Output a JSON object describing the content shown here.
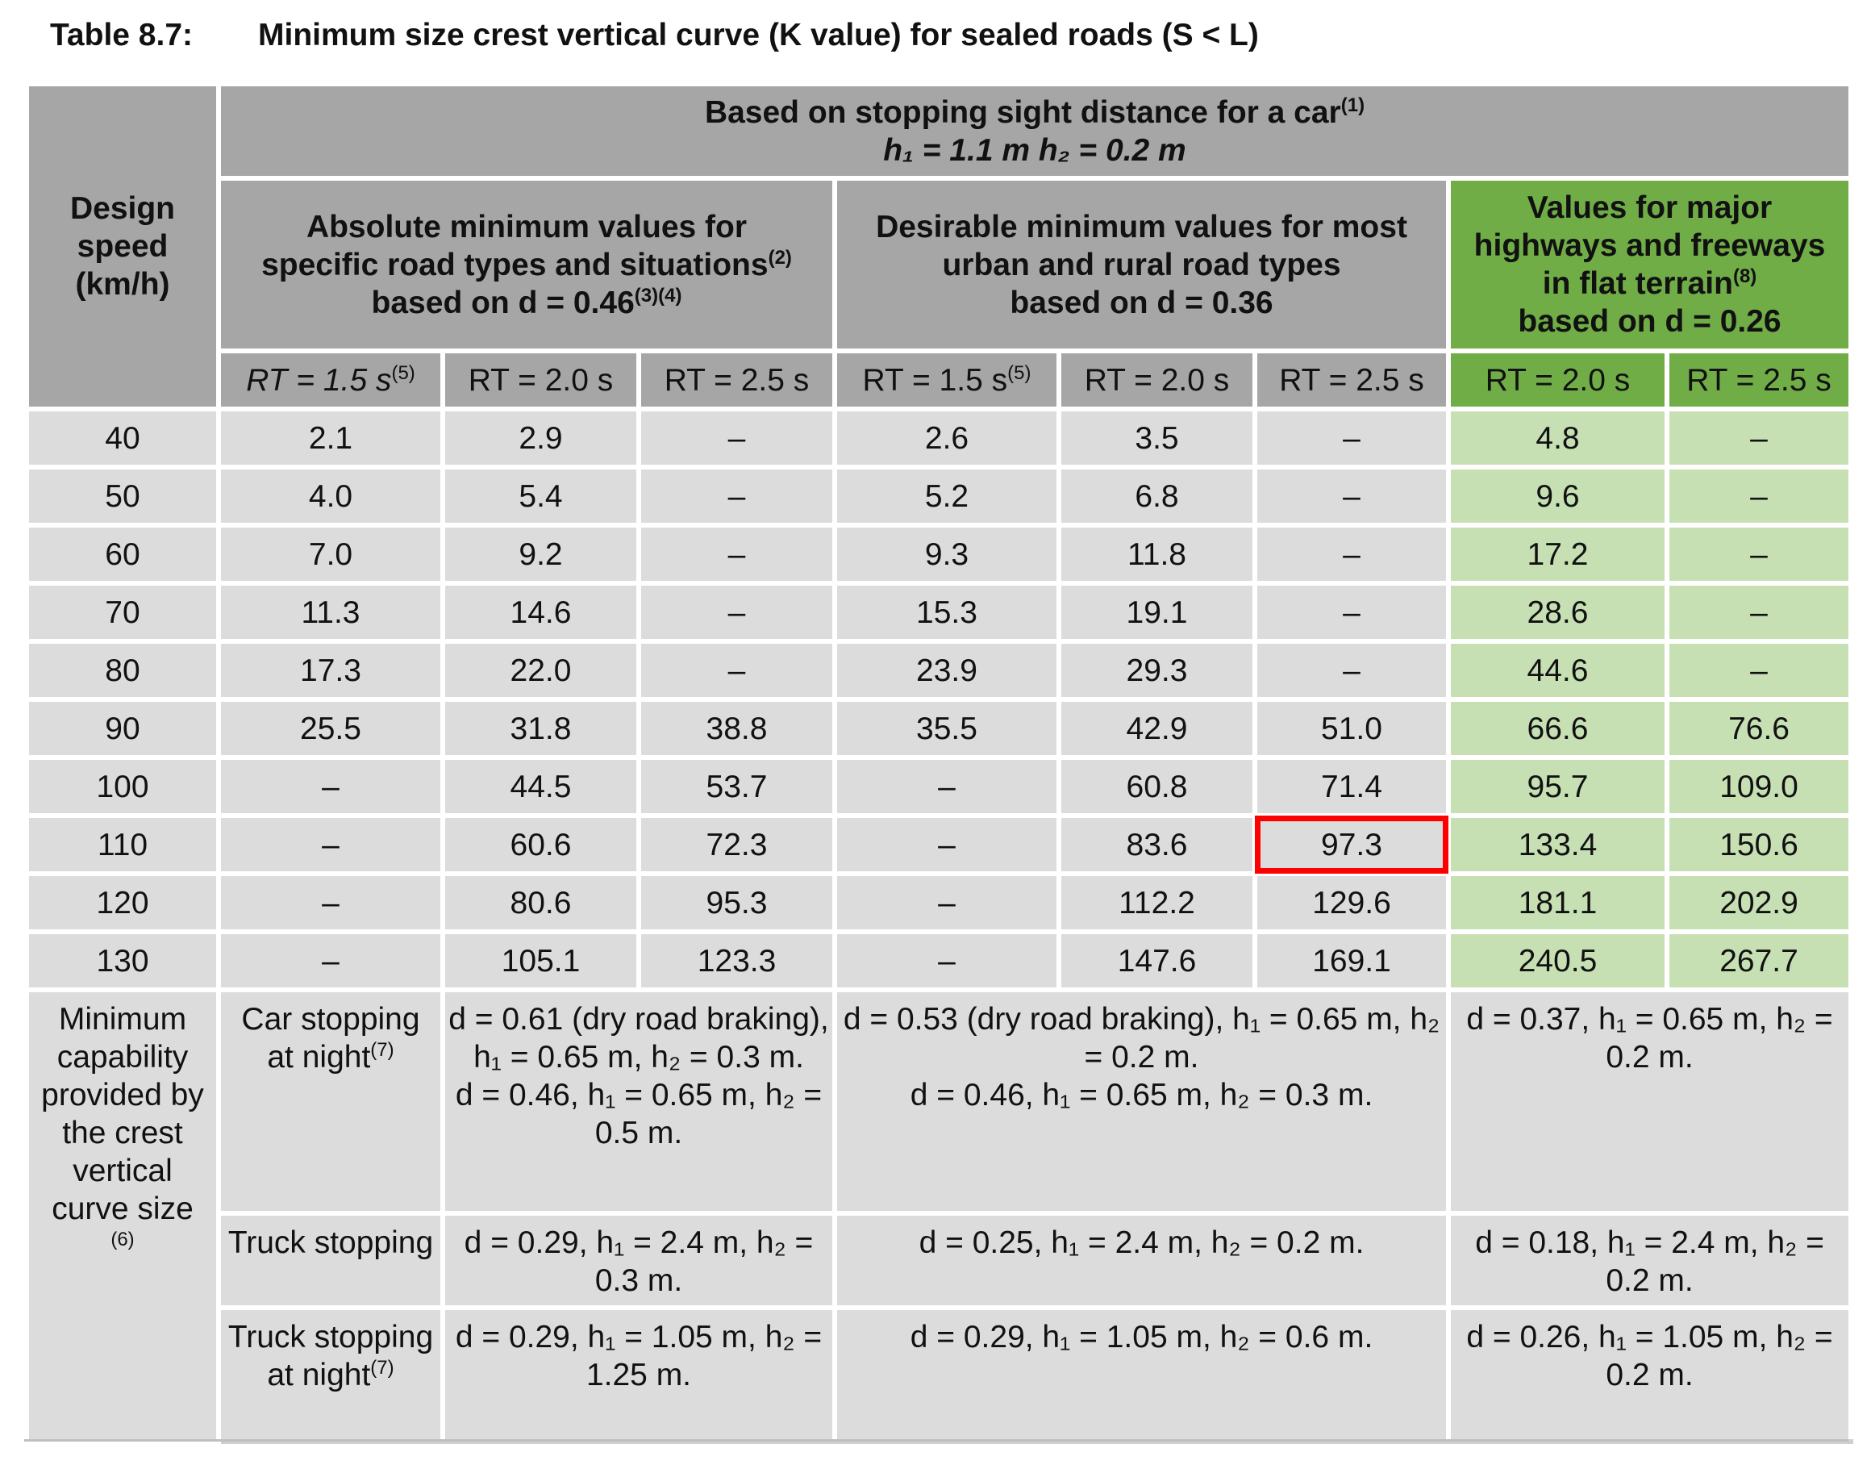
{
  "caption": {
    "number": "Table 8.7:",
    "title": "Minimum size crest vertical curve (K value) for sealed roads (S < L)"
  },
  "header": {
    "design_speed": "Design speed (km/h)",
    "top_group_line1": "Based on stopping sight distance for a car",
    "top_group_sup": "(1)",
    "top_group_line2": "h₁ = 1.1 m h₂ = 0.2 m",
    "group_absolute": {
      "line1": "Absolute minimum values for",
      "line2": "specific road types and situations",
      "sup2": "(2)",
      "line3": "based on d = 0.46",
      "sup3": "(3)(4)"
    },
    "group_desirable": {
      "line1": "Desirable minimum values for most",
      "line2": "urban and rural road types",
      "line3": "based on d = 0.36"
    },
    "group_major": {
      "line1": "Values for major",
      "line2": "highways and freeways",
      "line3": "in flat terrain",
      "sup3": "(8)",
      "line4": "based on d = 0.26"
    },
    "rt_labels": [
      "RT = 1.5 s",
      "RT = 2.0 s",
      "RT = 2.5 s",
      "RT = 1.5 s",
      "RT = 2.0 s",
      "RT = 2.5 s",
      "RT = 2.0 s",
      "RT = 2.5 s"
    ],
    "rt_sup": "(5)"
  },
  "rows": [
    {
      "speed": "40",
      "values": [
        "2.1",
        "2.9",
        "–",
        "2.6",
        "3.5",
        "–",
        "4.8",
        "–"
      ]
    },
    {
      "speed": "50",
      "values": [
        "4.0",
        "5.4",
        "–",
        "5.2",
        "6.8",
        "–",
        "9.6",
        "–"
      ]
    },
    {
      "speed": "60",
      "values": [
        "7.0",
        "9.2",
        "–",
        "9.3",
        "11.8",
        "–",
        "17.2",
        "–"
      ]
    },
    {
      "speed": "70",
      "values": [
        "11.3",
        "14.6",
        "–",
        "15.3",
        "19.1",
        "–",
        "28.6",
        "–"
      ]
    },
    {
      "speed": "80",
      "values": [
        "17.3",
        "22.0",
        "–",
        "23.9",
        "29.3",
        "–",
        "44.6",
        "–"
      ]
    },
    {
      "speed": "90",
      "values": [
        "25.5",
        "31.8",
        "38.8",
        "35.5",
        "42.9",
        "51.0",
        "66.6",
        "76.6"
      ]
    },
    {
      "speed": "100",
      "values": [
        "–",
        "44.5",
        "53.7",
        "–",
        "60.8",
        "71.4",
        "95.7",
        "109.0"
      ]
    },
    {
      "speed": "110",
      "values": [
        "–",
        "60.6",
        "72.3",
        "–",
        "83.6",
        "97.3",
        "133.4",
        "150.6"
      ]
    },
    {
      "speed": "120",
      "values": [
        "–",
        "80.6",
        "95.3",
        "–",
        "112.2",
        "129.6",
        "181.1",
        "202.9"
      ]
    },
    {
      "speed": "130",
      "values": [
        "–",
        "105.1",
        "123.3",
        "–",
        "147.6",
        "169.1",
        "240.5",
        "267.7"
      ]
    }
  ],
  "highlighted_cell": {
    "speed": "110",
    "column": "Desirable RT = 2.5 s",
    "value": "97.3"
  },
  "footer": {
    "label": "Minimum capability provided by the crest vertical curve size",
    "label_sup": "(6)",
    "rows": [
      {
        "name": "Car stopping at night",
        "name_sup": "(7)",
        "absolute": [
          "d = 0.61 (dry road braking),",
          "h₁ = 0.65 m, h₂ = 0.3 m.",
          "d = 0.46, h₁ = 0.65 m, h₂ = 0.5 m."
        ],
        "desirable": [
          "d = 0.53 (dry road braking), h₁ = 0.65 m, h₂ = 0.2 m.",
          "d = 0.46, h₁ = 0.65 m, h₂ = 0.3 m."
        ],
        "major": [
          "d = 0.37, h₁ = 0.65 m, h₂ = 0.2 m."
        ]
      },
      {
        "name": "Truck stopping",
        "name_sup": "",
        "absolute": [
          "d = 0.29, h₁ = 2.4 m, h₂ = 0.3 m."
        ],
        "desirable": [
          "d = 0.25, h₁ = 2.4 m, h₂ = 0.2 m."
        ],
        "major": [
          "d = 0.18, h₁ = 2.4 m, h₂ = 0.2 m."
        ]
      },
      {
        "name": "Truck stopping at night",
        "name_sup": "(7)",
        "absolute": [
          "d = 0.29, h₁ = 1.05 m, h₂ = 1.25 m."
        ],
        "desirable": [
          "d = 0.29, h₁ = 1.05 m, h₂ = 0.6 m."
        ],
        "major": [
          "d = 0.26, h₁ = 1.05 m, h₂ = 0.2 m."
        ]
      }
    ]
  },
  "colors": {
    "header_grey": "#a6a6a6",
    "cell_grey": "#dcdcdc",
    "header_green": "#70ad47",
    "cell_green": "#c6e0b4",
    "highlight": "#ff0000"
  }
}
